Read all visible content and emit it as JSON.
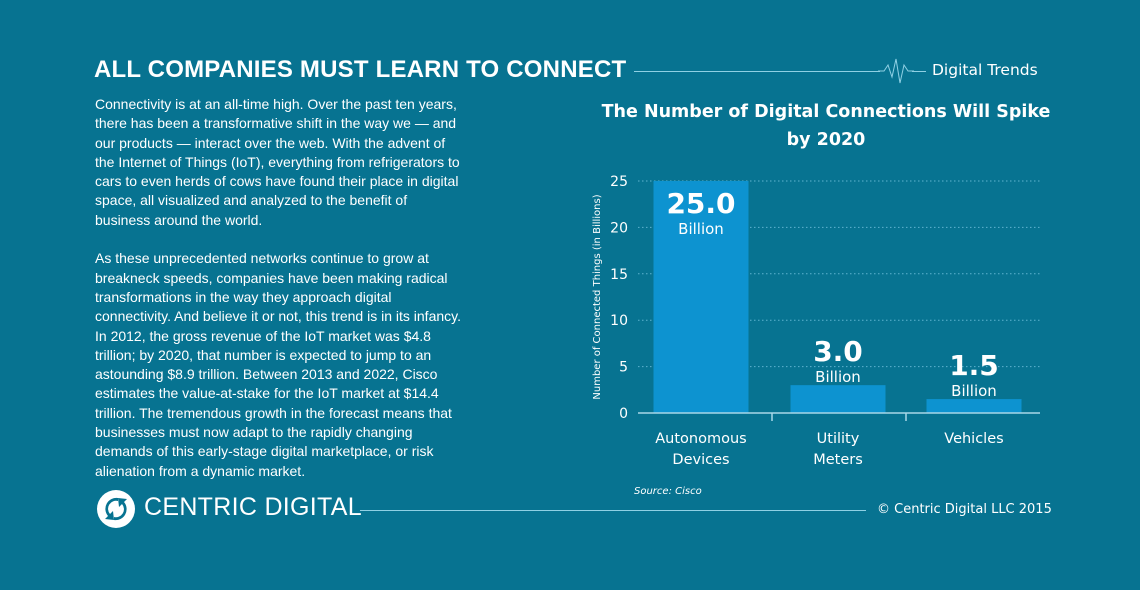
{
  "header": {
    "title": "ALL COMPANIES MUST LEARN TO CONNECT",
    "tag": "Digital Trends"
  },
  "article": {
    "paragraphs": [
      "Connectivity is at an all-time high. Over the past ten years, there has been a transformative shift in the way we — and our products — interact over the web. With the advent of the Internet of Things (IoT), everything from refrigerators to cars to even herds of cows have found their place in digital space, all visualized and analyzed to the benefit of business around the world.",
      "As these unprecedented networks continue to grow at breakneck speeds, companies have been making radical transformations in the way they approach digital connectivity. And believe it or not, this trend is in its infancy. In 2012, the gross revenue of the IoT market was $4.8 trillion; by 2020, that number is expected to jump to an astounding $8.9 trillion. Between 2013 and 2022, Cisco estimates the value-at-stake for the IoT market at $14.4 trillion. The tremendous growth in the forecast means that businesses must now adapt to the rapidly changing demands of this early-stage digital marketplace, or risk alienation from a dynamic market."
    ]
  },
  "chart_data": {
    "type": "bar",
    "title": "The Number of Digital Connections Will Spike by 2020",
    "ylabel": "Number of Connected Things (in Billions)",
    "xlabel": "",
    "categories": [
      [
        "Autonomous",
        "Devices"
      ],
      [
        "Utility",
        "Meters"
      ],
      [
        "Vehicles"
      ]
    ],
    "values": [
      25.0,
      3.0,
      1.5
    ],
    "data_labels": [
      "25.0",
      "3.0",
      "1.5"
    ],
    "data_label_unit": "Billion",
    "ylim": [
      0,
      25
    ],
    "yticks": [
      0,
      5,
      10,
      15,
      20,
      25
    ],
    "grid": true,
    "source": "Source: Cisco",
    "colors": {
      "bar": "#0d93d0",
      "grid": "#5fb3cf",
      "axis": "#a8d8e8"
    }
  },
  "footer": {
    "brand": "CENTRIC DIGITAL",
    "copyright": "© Centric Digital LLC 2015"
  },
  "colors": {
    "background": "#077391",
    "text": "#ffffff"
  }
}
